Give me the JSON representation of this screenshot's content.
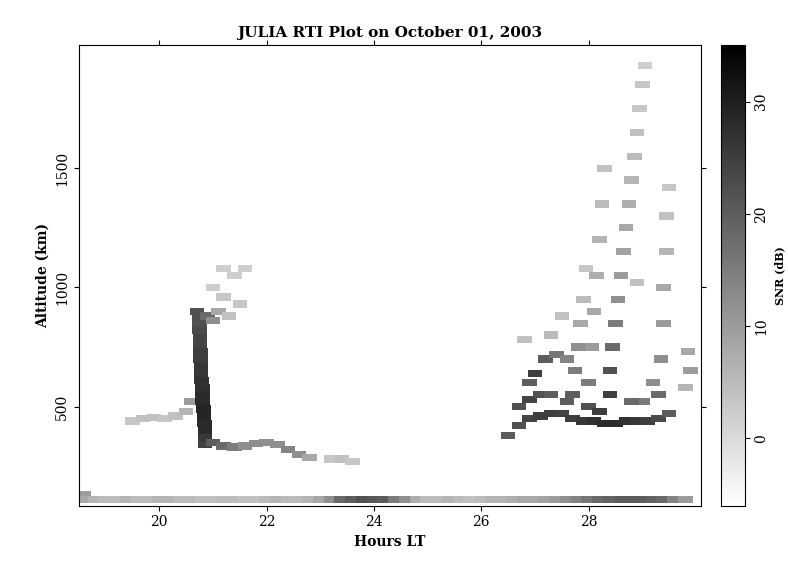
{
  "chart_data": {
    "type": "heatmap",
    "title": "JULIA RTI Plot on October 01, 2003",
    "x_label": "Hours LT",
    "y_label": "Altitude (km)",
    "xlim": [
      18.5,
      30.1
    ],
    "ylim": [
      85,
      2015
    ],
    "xticks": [
      20,
      22,
      24,
      26,
      28
    ],
    "yticks": [
      500,
      1000,
      1500
    ],
    "colorbar": {
      "label": "SNR (dB)",
      "range": [
        -6,
        35
      ],
      "ticks": [
        0,
        10,
        20,
        30
      ]
    },
    "points": [
      [
        18.6,
        130,
        10
      ],
      [
        18.6,
        110,
        8
      ],
      [
        18.8,
        110,
        6
      ],
      [
        19.0,
        110,
        5
      ],
      [
        19.2,
        110,
        5
      ],
      [
        19.4,
        110,
        6
      ],
      [
        19.6,
        110,
        5
      ],
      [
        19.8,
        110,
        5
      ],
      [
        20.0,
        110,
        6
      ],
      [
        20.2,
        110,
        6
      ],
      [
        20.4,
        110,
        5
      ],
      [
        20.6,
        110,
        5
      ],
      [
        20.8,
        110,
        4
      ],
      [
        21.0,
        110,
        4
      ],
      [
        21.2,
        110,
        5
      ],
      [
        21.4,
        110,
        5
      ],
      [
        21.6,
        110,
        4
      ],
      [
        21.8,
        110,
        4
      ],
      [
        22.0,
        110,
        5
      ],
      [
        22.2,
        110,
        6
      ],
      [
        22.4,
        110,
        5
      ],
      [
        22.6,
        110,
        5
      ],
      [
        22.8,
        110,
        6
      ],
      [
        23.0,
        110,
        8
      ],
      [
        23.2,
        110,
        12
      ],
      [
        23.4,
        110,
        18
      ],
      [
        23.6,
        110,
        20
      ],
      [
        23.8,
        110,
        22
      ],
      [
        24.0,
        110,
        21
      ],
      [
        24.2,
        110,
        20
      ],
      [
        24.4,
        110,
        15
      ],
      [
        24.6,
        110,
        12
      ],
      [
        24.8,
        110,
        7
      ],
      [
        25.0,
        110,
        5
      ],
      [
        25.2,
        110,
        5
      ],
      [
        25.4,
        110,
        6
      ],
      [
        25.6,
        110,
        5
      ],
      [
        25.8,
        110,
        4
      ],
      [
        26.0,
        110,
        5
      ],
      [
        26.2,
        110,
        6
      ],
      [
        26.4,
        110,
        6
      ],
      [
        26.6,
        110,
        7
      ],
      [
        26.8,
        110,
        8
      ],
      [
        27.0,
        110,
        8
      ],
      [
        27.2,
        110,
        9
      ],
      [
        27.4,
        110,
        10
      ],
      [
        27.6,
        110,
        12
      ],
      [
        27.8,
        110,
        14
      ],
      [
        28.0,
        110,
        16
      ],
      [
        28.2,
        110,
        18
      ],
      [
        28.4,
        110,
        19
      ],
      [
        28.6,
        110,
        20
      ],
      [
        28.8,
        110,
        20
      ],
      [
        29.0,
        110,
        20
      ],
      [
        29.2,
        110,
        19
      ],
      [
        29.4,
        110,
        18
      ],
      [
        29.6,
        110,
        14
      ],
      [
        29.8,
        110,
        10
      ],
      [
        19.5,
        440,
        3
      ],
      [
        19.7,
        450,
        4
      ],
      [
        19.9,
        455,
        4
      ],
      [
        20.1,
        450,
        3
      ],
      [
        20.3,
        460,
        4
      ],
      [
        20.5,
        480,
        6
      ],
      [
        20.6,
        520,
        10
      ],
      [
        20.85,
        340,
        24
      ],
      [
        20.85,
        370,
        26
      ],
      [
        20.85,
        400,
        28
      ],
      [
        20.84,
        430,
        28
      ],
      [
        20.83,
        460,
        29
      ],
      [
        20.82,
        490,
        29
      ],
      [
        20.81,
        520,
        28
      ],
      [
        20.8,
        550,
        28
      ],
      [
        20.8,
        580,
        27
      ],
      [
        20.79,
        610,
        27
      ],
      [
        20.78,
        640,
        26
      ],
      [
        20.78,
        670,
        26
      ],
      [
        20.77,
        700,
        25
      ],
      [
        20.77,
        730,
        25
      ],
      [
        20.76,
        760,
        24
      ],
      [
        20.76,
        790,
        24
      ],
      [
        20.75,
        820,
        23
      ],
      [
        20.75,
        850,
        22
      ],
      [
        20.75,
        880,
        22
      ],
      [
        21.0,
        350,
        20
      ],
      [
        21.2,
        335,
        18
      ],
      [
        21.4,
        330,
        15
      ],
      [
        21.6,
        335,
        12
      ],
      [
        21.8,
        345,
        12
      ],
      [
        22.0,
        350,
        12
      ],
      [
        22.2,
        340,
        12
      ],
      [
        22.4,
        320,
        14
      ],
      [
        22.6,
        300,
        12
      ],
      [
        22.8,
        285,
        8
      ],
      [
        23.2,
        280,
        3
      ],
      [
        23.4,
        280,
        4
      ],
      [
        23.6,
        270,
        3
      ],
      [
        20.7,
        900,
        22
      ],
      [
        20.9,
        880,
        18
      ],
      [
        21.0,
        860,
        12
      ],
      [
        21.1,
        900,
        8
      ],
      [
        21.3,
        880,
        4
      ],
      [
        21.5,
        930,
        3
      ],
      [
        21.2,
        960,
        3
      ],
      [
        21.0,
        1000,
        2
      ],
      [
        21.4,
        1050,
        2
      ],
      [
        21.6,
        1080,
        2
      ],
      [
        21.2,
        1080,
        2
      ],
      [
        26.5,
        380,
        20
      ],
      [
        26.7,
        420,
        22
      ],
      [
        26.9,
        450,
        24
      ],
      [
        27.1,
        460,
        25
      ],
      [
        27.3,
        470,
        25
      ],
      [
        27.5,
        470,
        24
      ],
      [
        27.7,
        450,
        25
      ],
      [
        27.9,
        440,
        26
      ],
      [
        28.1,
        440,
        27
      ],
      [
        28.3,
        430,
        28
      ],
      [
        28.5,
        430,
        28
      ],
      [
        28.7,
        440,
        27
      ],
      [
        28.9,
        440,
        26
      ],
      [
        29.1,
        440,
        25
      ],
      [
        29.3,
        450,
        23
      ],
      [
        29.5,
        470,
        20
      ],
      [
        26.7,
        500,
        22
      ],
      [
        26.9,
        530,
        24
      ],
      [
        27.1,
        550,
        22
      ],
      [
        27.3,
        550,
        20
      ],
      [
        26.9,
        600,
        20
      ],
      [
        27.0,
        640,
        25
      ],
      [
        27.2,
        700,
        20
      ],
      [
        27.4,
        720,
        16
      ],
      [
        27.6,
        700,
        14
      ],
      [
        28.4,
        550,
        25
      ],
      [
        28.4,
        650,
        22
      ],
      [
        28.45,
        750,
        18
      ],
      [
        28.5,
        850,
        15
      ],
      [
        28.55,
        950,
        12
      ],
      [
        28.6,
        1050,
        10
      ],
      [
        28.65,
        1150,
        9
      ],
      [
        28.7,
        1250,
        8
      ],
      [
        28.75,
        1350,
        7
      ],
      [
        28.8,
        1450,
        6
      ],
      [
        28.85,
        1550,
        5
      ],
      [
        28.9,
        1650,
        4
      ],
      [
        28.95,
        1750,
        3
      ],
      [
        29.0,
        1850,
        3
      ],
      [
        29.05,
        1930,
        2
      ],
      [
        28.0,
        600,
        15
      ],
      [
        28.05,
        750,
        10
      ],
      [
        28.1,
        900,
        8
      ],
      [
        28.15,
        1050,
        7
      ],
      [
        28.2,
        1200,
        6
      ],
      [
        28.25,
        1350,
        5
      ],
      [
        28.3,
        1500,
        4
      ],
      [
        29.3,
        550,
        18
      ],
      [
        29.35,
        700,
        12
      ],
      [
        29.4,
        850,
        10
      ],
      [
        29.4,
        1000,
        8
      ],
      [
        29.45,
        1150,
        6
      ],
      [
        29.45,
        1300,
        4
      ],
      [
        29.5,
        1420,
        3
      ],
      [
        27.7,
        550,
        20
      ],
      [
        27.75,
        650,
        15
      ],
      [
        27.8,
        750,
        12
      ],
      [
        27.85,
        850,
        8
      ],
      [
        27.9,
        950,
        5
      ],
      [
        27.95,
        1080,
        3
      ],
      [
        27.3,
        800,
        5
      ],
      [
        27.5,
        880,
        4
      ],
      [
        26.8,
        780,
        4
      ],
      [
        28.9,
        1020,
        4
      ],
      [
        29.85,
        730,
        8
      ],
      [
        29.9,
        650,
        10
      ],
      [
        29.8,
        580,
        6
      ],
      [
        29.2,
        600,
        12
      ],
      [
        29.0,
        520,
        15
      ],
      [
        28.8,
        520,
        18
      ],
      [
        28.0,
        500,
        22
      ],
      [
        27.6,
        520,
        20
      ],
      [
        28.2,
        480,
        25
      ]
    ]
  }
}
